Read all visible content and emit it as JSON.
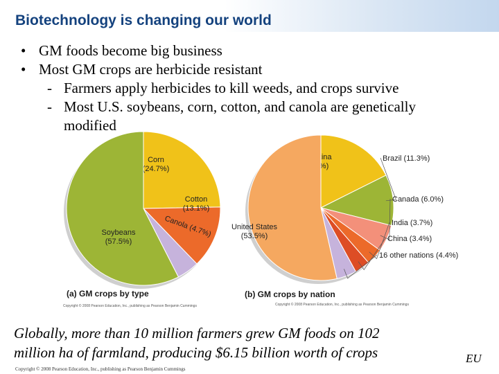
{
  "slide": {
    "title": "Biotechnology is changing our world",
    "bullets": [
      {
        "text": "GM foods become big business"
      },
      {
        "text": "Most GM crops are herbicide resistant",
        "subs": [
          "Farmers apply herbicides to kill weeds, and crops survive",
          "Most U.S. soybeans, corn, cotton, and canola are genetically",
          "modified"
        ]
      }
    ],
    "caption_lines": [
      "Globally, more than 10 million farmers grew GM foods on 102",
      "million ha of farmland, producing $6.15 billion worth of crops"
    ],
    "badge": "EU",
    "footer_copyright": "Copyright © 2008 Pearson Education, Inc., publishing as Pearson Benjamin Cummings"
  },
  "figure": {
    "panel_a_title": "(a) GM crops by type",
    "panel_b_title": "(b) GM crops by nation",
    "panel_a_copyright": "Copyright © 2008 Pearson Education, Inc., publishing as Pearson Benjamin Cummings",
    "panel_b_copyright": "Copyright © 2008 Pearson Education, Inc., publishing as Pearson Benjamin Cummings"
  },
  "chart_data": [
    {
      "type": "pie",
      "title": "(a) GM crops by type",
      "slices": [
        {
          "name": "Corn",
          "label": "(24.7%)",
          "value": 24.7,
          "color": "#f0c219"
        },
        {
          "name": "Cotton",
          "label": "(13.1%)",
          "value": 13.1,
          "color": "#ec6a2a"
        },
        {
          "name": "Canola",
          "label": "Canola (4.7%)",
          "value": 4.7,
          "color": "#c6b3dc"
        },
        {
          "name": "Soybeans",
          "label": "(57.5%)",
          "value": 57.5,
          "color": "#9db536"
        }
      ]
    },
    {
      "type": "pie",
      "title": "(b) GM crops by nation",
      "slices": [
        {
          "name": "Argentina",
          "label": "(17.6%)",
          "value": 17.6,
          "color": "#f0c219"
        },
        {
          "name": "Brazil",
          "label": "Brazil (11.3%)",
          "value": 11.3,
          "color": "#9db536"
        },
        {
          "name": "Canada",
          "label": "Canada (6.0%)",
          "value": 6.0,
          "color": "#f3907a"
        },
        {
          "name": "India",
          "label": "India (3.7%)",
          "value": 3.7,
          "color": "#ec6a2a"
        },
        {
          "name": "China",
          "label": "China (3.4%)",
          "value": 3.4,
          "color": "#dd4d25"
        },
        {
          "name": "16 other nations",
          "label": "16 other nations (4.4%)",
          "value": 4.4,
          "color": "#c6b3dc"
        },
        {
          "name": "United States",
          "label": "(53.5%)",
          "value": 53.5,
          "color": "#f5a860"
        }
      ]
    }
  ]
}
